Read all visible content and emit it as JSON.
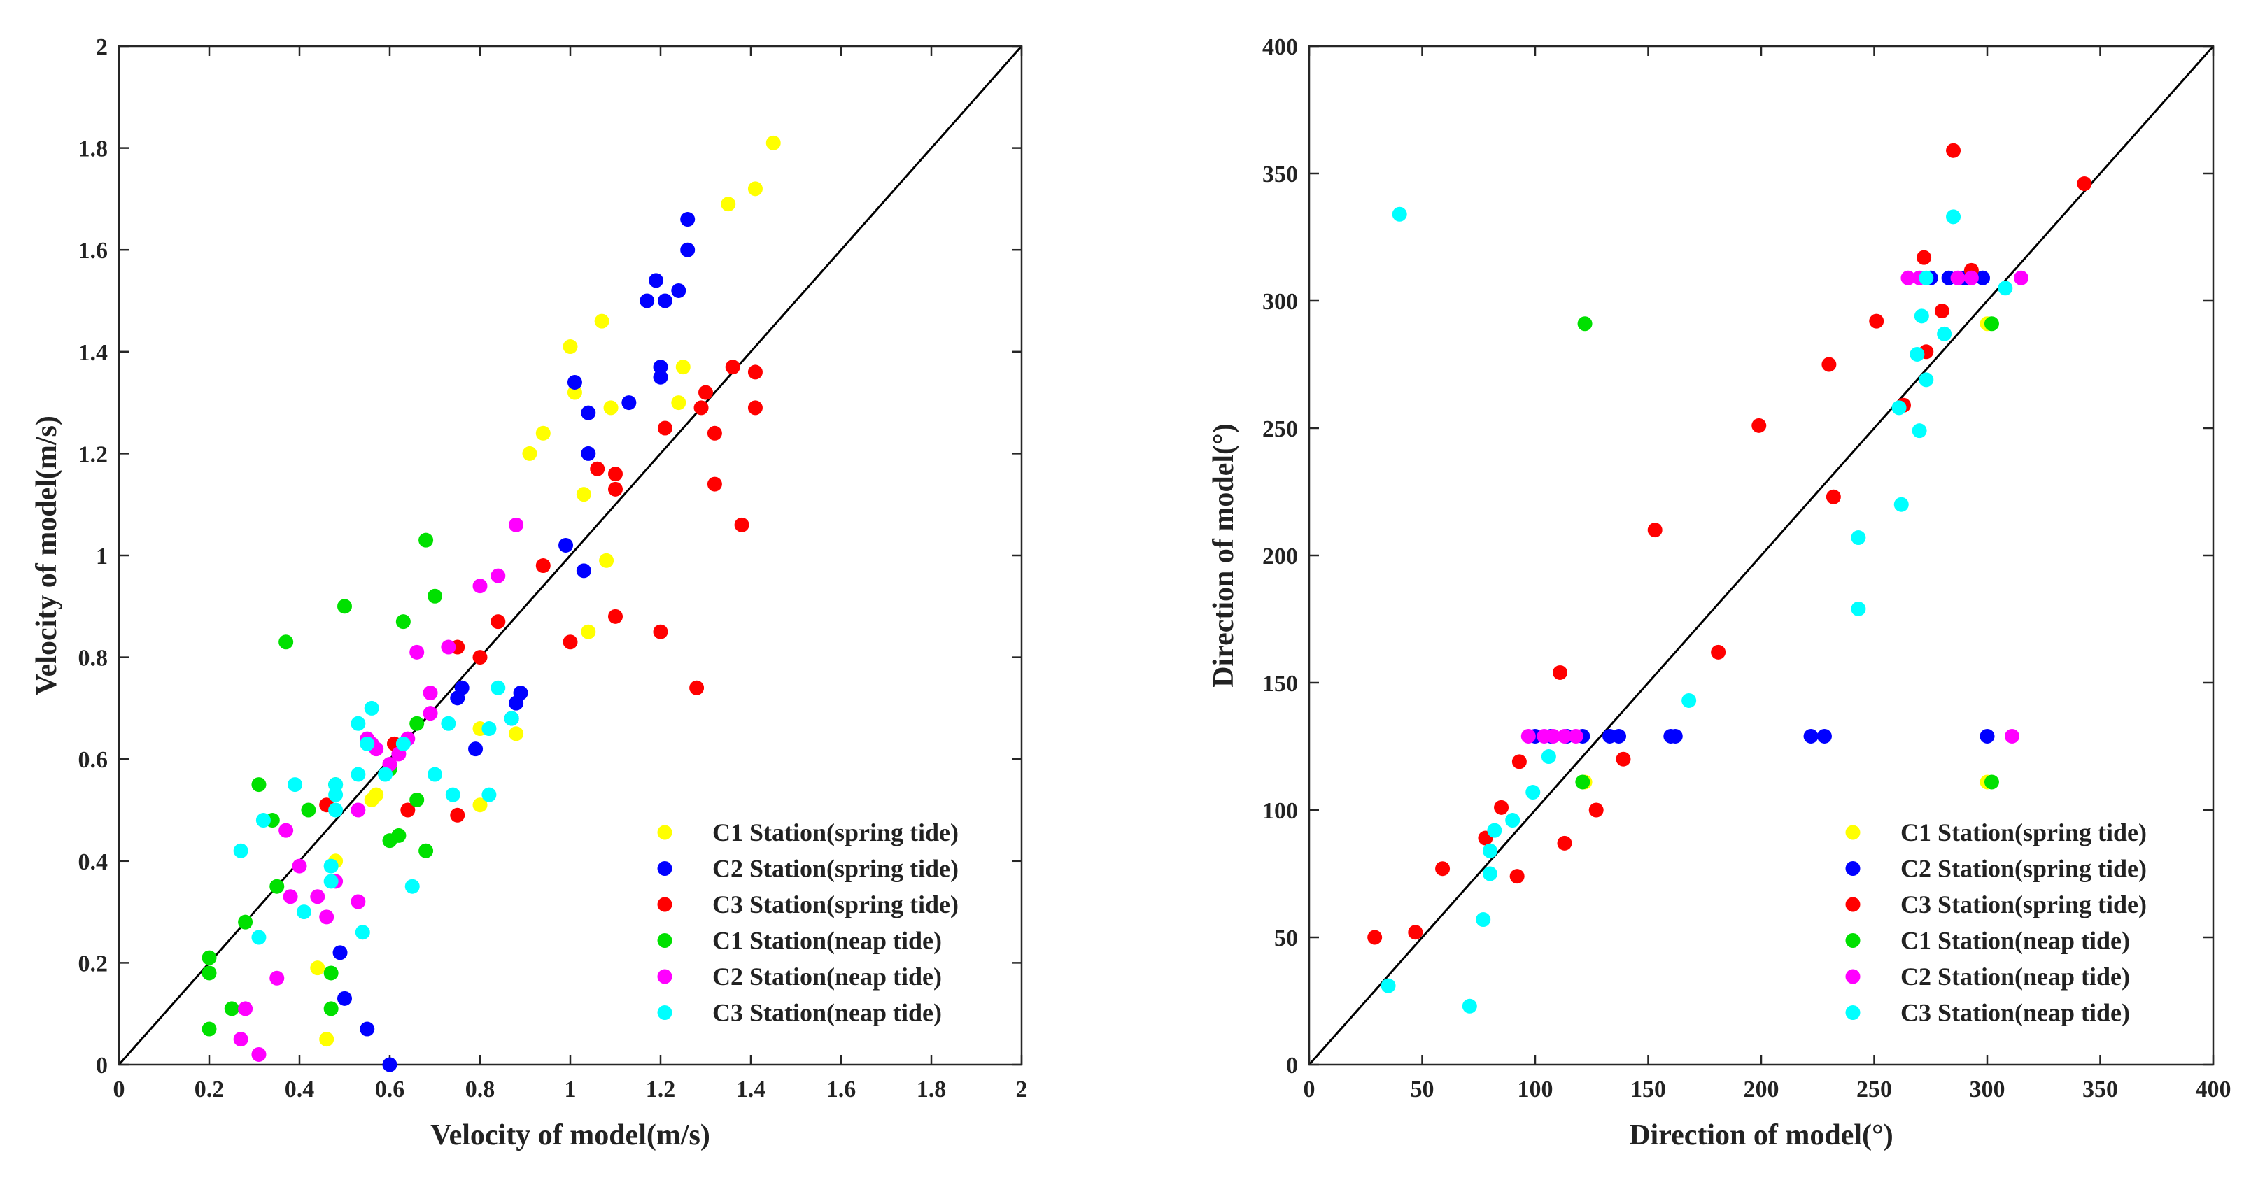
{
  "chart_data": [
    {
      "type": "scatter",
      "title": "",
      "xlabel": "Velocity of model(m/s)",
      "ylabel": "Velocity of model(m/s)",
      "xlim": [
        0,
        2
      ],
      "ylim": [
        0,
        2
      ],
      "xticks": [
        0,
        0.2,
        0.4,
        0.6,
        0.8,
        1,
        1.2,
        1.4,
        1.6,
        1.8,
        2
      ],
      "yticks": [
        0,
        0.2,
        0.4,
        0.6,
        0.8,
        1,
        1.2,
        1.4,
        1.6,
        1.8,
        2
      ],
      "xtick_labels": [
        "0",
        "0.2",
        "0.4",
        "0.6",
        "0.8",
        "1",
        "1.2",
        "1.4",
        "1.6",
        "1.8",
        "2"
      ],
      "ytick_labels": [
        "0",
        "0.2",
        "0.4",
        "0.6",
        "0.8",
        "1",
        "1.2",
        "1.4",
        "1.6",
        "1.8",
        "2"
      ],
      "reference_line": "y = x",
      "grid": false,
      "legend_position": "bottom-right",
      "series": [
        {
          "name": "C1 Station(spring tide)",
          "color": "#ffff00",
          "points": [
            [
              1.45,
              1.81
            ],
            [
              1.41,
              1.72
            ],
            [
              1.35,
              1.69
            ],
            [
              1.07,
              1.46
            ],
            [
              1.0,
              1.41
            ],
            [
              1.25,
              1.37
            ],
            [
              1.01,
              1.32
            ],
            [
              1.24,
              1.3
            ],
            [
              1.09,
              1.29
            ],
            [
              0.94,
              1.24
            ],
            [
              0.91,
              1.2
            ],
            [
              1.03,
              1.12
            ],
            [
              1.08,
              0.99
            ],
            [
              1.04,
              0.85
            ],
            [
              0.8,
              0.66
            ],
            [
              0.88,
              0.65
            ],
            [
              0.57,
              0.53
            ],
            [
              0.56,
              0.52
            ],
            [
              0.8,
              0.51
            ],
            [
              0.48,
              0.4
            ],
            [
              0.44,
              0.19
            ],
            [
              0.46,
              0.05
            ]
          ]
        },
        {
          "name": "C2 Station(spring tide)",
          "color": "#0000ff",
          "points": [
            [
              1.26,
              1.66
            ],
            [
              1.26,
              1.6
            ],
            [
              1.19,
              1.54
            ],
            [
              1.17,
              1.5
            ],
            [
              1.21,
              1.5
            ],
            [
              1.24,
              1.52
            ],
            [
              1.2,
              1.37
            ],
            [
              1.2,
              1.35
            ],
            [
              1.01,
              1.34
            ],
            [
              1.04,
              1.28
            ],
            [
              1.13,
              1.3
            ],
            [
              1.04,
              1.2
            ],
            [
              0.99,
              1.02
            ],
            [
              1.03,
              0.97
            ],
            [
              0.76,
              0.74
            ],
            [
              0.75,
              0.72
            ],
            [
              0.89,
              0.73
            ],
            [
              0.88,
              0.71
            ],
            [
              0.79,
              0.62
            ],
            [
              0.87,
              0.68
            ],
            [
              0.49,
              0.22
            ],
            [
              0.5,
              0.13
            ],
            [
              0.55,
              0.07
            ],
            [
              0.6,
              0.0
            ]
          ]
        },
        {
          "name": "C3 Station(spring tide)",
          "color": "#ff0000",
          "points": [
            [
              1.36,
              1.37
            ],
            [
              1.41,
              1.36
            ],
            [
              1.3,
              1.32
            ],
            [
              1.29,
              1.29
            ],
            [
              1.41,
              1.29
            ],
            [
              1.21,
              1.25
            ],
            [
              1.32,
              1.24
            ],
            [
              1.06,
              1.17
            ],
            [
              1.1,
              1.16
            ],
            [
              1.1,
              1.13
            ],
            [
              1.32,
              1.14
            ],
            [
              1.38,
              1.06
            ],
            [
              0.94,
              0.98
            ],
            [
              1.1,
              0.88
            ],
            [
              0.84,
              0.87
            ],
            [
              1.2,
              0.85
            ],
            [
              1.0,
              0.83
            ],
            [
              0.75,
              0.82
            ],
            [
              0.8,
              0.8
            ],
            [
              1.28,
              0.74
            ],
            [
              0.64,
              0.5
            ],
            [
              0.75,
              0.49
            ],
            [
              0.46,
              0.51
            ],
            [
              0.61,
              0.63
            ]
          ]
        },
        {
          "name": "C1 Station(neap tide)",
          "color": "#00e000",
          "points": [
            [
              0.68,
              1.03
            ],
            [
              0.5,
              0.9
            ],
            [
              0.7,
              0.92
            ],
            [
              0.63,
              0.87
            ],
            [
              0.37,
              0.83
            ],
            [
              0.66,
              0.67
            ],
            [
              0.6,
              0.58
            ],
            [
              0.31,
              0.55
            ],
            [
              0.48,
              0.55
            ],
            [
              0.42,
              0.5
            ],
            [
              0.66,
              0.52
            ],
            [
              0.6,
              0.44
            ],
            [
              0.62,
              0.45
            ],
            [
              0.34,
              0.48
            ],
            [
              0.68,
              0.42
            ],
            [
              0.35,
              0.35
            ],
            [
              0.28,
              0.28
            ],
            [
              0.2,
              0.21
            ],
            [
              0.2,
              0.18
            ],
            [
              0.47,
              0.18
            ],
            [
              0.25,
              0.11
            ],
            [
              0.47,
              0.11
            ],
            [
              0.2,
              0.07
            ]
          ]
        },
        {
          "name": "C2 Station(neap tide)",
          "color": "#ff00ff",
          "points": [
            [
              0.88,
              1.06
            ],
            [
              0.84,
              0.96
            ],
            [
              0.8,
              0.94
            ],
            [
              0.73,
              0.82
            ],
            [
              0.66,
              0.81
            ],
            [
              0.69,
              0.73
            ],
            [
              0.69,
              0.69
            ],
            [
              0.64,
              0.64
            ],
            [
              0.55,
              0.64
            ],
            [
              0.56,
              0.63
            ],
            [
              0.62,
              0.61
            ],
            [
              0.57,
              0.62
            ],
            [
              0.6,
              0.59
            ],
            [
              0.53,
              0.5
            ],
            [
              0.37,
              0.46
            ],
            [
              0.4,
              0.39
            ],
            [
              0.38,
              0.33
            ],
            [
              0.44,
              0.33
            ],
            [
              0.53,
              0.32
            ],
            [
              0.48,
              0.36
            ],
            [
              0.46,
              0.29
            ],
            [
              0.35,
              0.17
            ],
            [
              0.28,
              0.11
            ],
            [
              0.27,
              0.05
            ],
            [
              0.31,
              0.02
            ]
          ]
        },
        {
          "name": "C3 Station(neap tide)",
          "color": "#00ffff",
          "points": [
            [
              0.84,
              0.74
            ],
            [
              0.82,
              0.66
            ],
            [
              0.56,
              0.7
            ],
            [
              0.53,
              0.67
            ],
            [
              0.73,
              0.67
            ],
            [
              0.63,
              0.63
            ],
            [
              0.55,
              0.63
            ],
            [
              0.53,
              0.57
            ],
            [
              0.59,
              0.57
            ],
            [
              0.48,
              0.55
            ],
            [
              0.39,
              0.55
            ],
            [
              0.48,
              0.53
            ],
            [
              0.82,
              0.53
            ],
            [
              0.74,
              0.53
            ],
            [
              0.7,
              0.57
            ],
            [
              0.48,
              0.5
            ],
            [
              0.32,
              0.48
            ],
            [
              0.27,
              0.42
            ],
            [
              0.47,
              0.39
            ],
            [
              0.41,
              0.3
            ],
            [
              0.47,
              0.36
            ],
            [
              0.65,
              0.35
            ],
            [
              0.54,
              0.26
            ],
            [
              0.31,
              0.25
            ],
            [
              0.87,
              0.68
            ]
          ]
        }
      ]
    },
    {
      "type": "scatter",
      "title": "",
      "xlabel": "Direction of model(°)",
      "ylabel": "Direction of model(°)",
      "xlim": [
        0,
        400
      ],
      "ylim": [
        0,
        400
      ],
      "xticks": [
        0,
        50,
        100,
        150,
        200,
        250,
        300,
        350,
        400
      ],
      "yticks": [
        0,
        50,
        100,
        150,
        200,
        250,
        300,
        350,
        400
      ],
      "xtick_labels": [
        "0",
        "50",
        "100",
        "150",
        "200",
        "250",
        "300",
        "350",
        "400"
      ],
      "ytick_labels": [
        "0",
        "50",
        "100",
        "150",
        "200",
        "250",
        "300",
        "350",
        "400"
      ],
      "reference_line": "y = x",
      "grid": false,
      "legend_position": "bottom-right",
      "series": [
        {
          "name": "C1 Station(spring tide)",
          "color": "#ffff00",
          "points": [
            [
              122,
              111
            ],
            [
              300,
              111
            ],
            [
              300,
              291
            ]
          ]
        },
        {
          "name": "C2 Station(spring tide)",
          "color": "#0000ff",
          "points": [
            [
              275,
              309
            ],
            [
              283,
              309
            ],
            [
              290,
              309
            ],
            [
              298,
              309
            ],
            [
              100,
              129
            ],
            [
              107,
              129
            ],
            [
              114,
              129
            ],
            [
              121,
              129
            ],
            [
              133,
              129
            ],
            [
              137,
              129
            ],
            [
              160,
              129
            ],
            [
              162,
              129
            ],
            [
              222,
              129
            ],
            [
              228,
              129
            ],
            [
              300,
              129
            ]
          ]
        },
        {
          "name": "C3 Station(spring tide)",
          "color": "#ff0000",
          "points": [
            [
              285,
              359
            ],
            [
              343,
              346
            ],
            [
              272,
              317
            ],
            [
              293,
              312
            ],
            [
              280,
              296
            ],
            [
              251,
              292
            ],
            [
              273,
              280
            ],
            [
              230,
              275
            ],
            [
              263,
              259
            ],
            [
              199,
              251
            ],
            [
              232,
              223
            ],
            [
              153,
              210
            ],
            [
              181,
              162
            ],
            [
              111,
              154
            ],
            [
              139,
              120
            ],
            [
              93,
              119
            ],
            [
              127,
              100
            ],
            [
              85,
              101
            ],
            [
              78,
              89
            ],
            [
              113,
              87
            ],
            [
              59,
              77
            ],
            [
              92,
              74
            ],
            [
              47,
              52
            ],
            [
              29,
              50
            ]
          ]
        },
        {
          "name": "C1 Station(neap tide)",
          "color": "#00e000",
          "points": [
            [
              122,
              291
            ],
            [
              302,
              291
            ],
            [
              302,
              111
            ],
            [
              121,
              111
            ]
          ]
        },
        {
          "name": "C2 Station(neap tide)",
          "color": "#ff00ff",
          "points": [
            [
              265,
              309
            ],
            [
              270,
              309
            ],
            [
              287,
              309
            ],
            [
              293,
              309
            ],
            [
              315,
              309
            ],
            [
              97,
              129
            ],
            [
              104,
              129
            ],
            [
              108,
              129
            ],
            [
              113,
              129
            ],
            [
              118,
              129
            ],
            [
              311,
              129
            ]
          ]
        },
        {
          "name": "C3 Station(neap tide)",
          "color": "#00ffff",
          "points": [
            [
              40,
              334
            ],
            [
              285,
              333
            ],
            [
              273,
              309
            ],
            [
              308,
              305
            ],
            [
              271,
              294
            ],
            [
              281,
              287
            ],
            [
              269,
              279
            ],
            [
              273,
              269
            ],
            [
              270,
              249
            ],
            [
              261,
              258
            ],
            [
              262,
              220
            ],
            [
              243,
              207
            ],
            [
              243,
              179
            ],
            [
              168,
              143
            ],
            [
              106,
              121
            ],
            [
              99,
              107
            ],
            [
              90,
              96
            ],
            [
              82,
              92
            ],
            [
              80,
              84
            ],
            [
              80,
              75
            ],
            [
              77,
              57
            ],
            [
              35,
              31
            ],
            [
              71,
              23
            ]
          ]
        }
      ]
    }
  ]
}
